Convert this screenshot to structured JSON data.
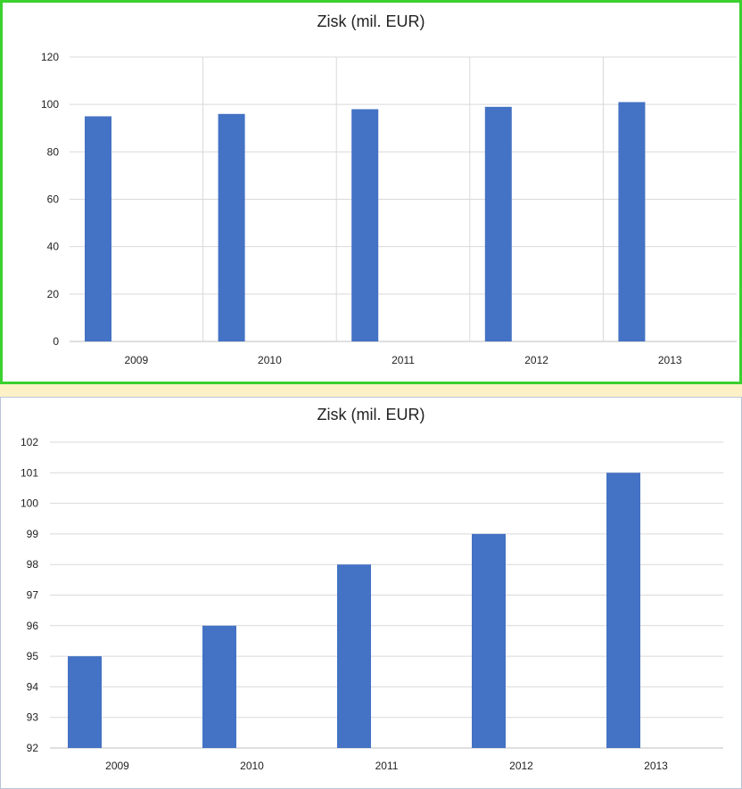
{
  "colors": {
    "bar": "#4472c4",
    "grid": "#d9d9d9",
    "axis": "#bfbfbf",
    "panel1_border": "#3bd12f",
    "divider": "#fdf1c8"
  },
  "chart_data": [
    {
      "type": "bar",
      "title": "Zisk (mil. EUR)",
      "categories": [
        "2009",
        "2010",
        "2011",
        "2012",
        "2013"
      ],
      "values": [
        95,
        96,
        98,
        99,
        101
      ],
      "ylim": [
        0,
        120
      ],
      "yticks": [
        "0",
        "20",
        "40",
        "60",
        "80",
        "100",
        "120"
      ],
      "grid": "both"
    },
    {
      "type": "bar",
      "title": "Zisk (mil. EUR)",
      "categories": [
        "2009",
        "2010",
        "2011",
        "2012",
        "2013"
      ],
      "values": [
        95,
        96,
        98,
        99,
        101
      ],
      "ylim": [
        92,
        102
      ],
      "yticks": [
        "92",
        "93",
        "94",
        "95",
        "96",
        "97",
        "98",
        "99",
        "100",
        "101",
        "102"
      ],
      "grid": "horizontal"
    }
  ]
}
